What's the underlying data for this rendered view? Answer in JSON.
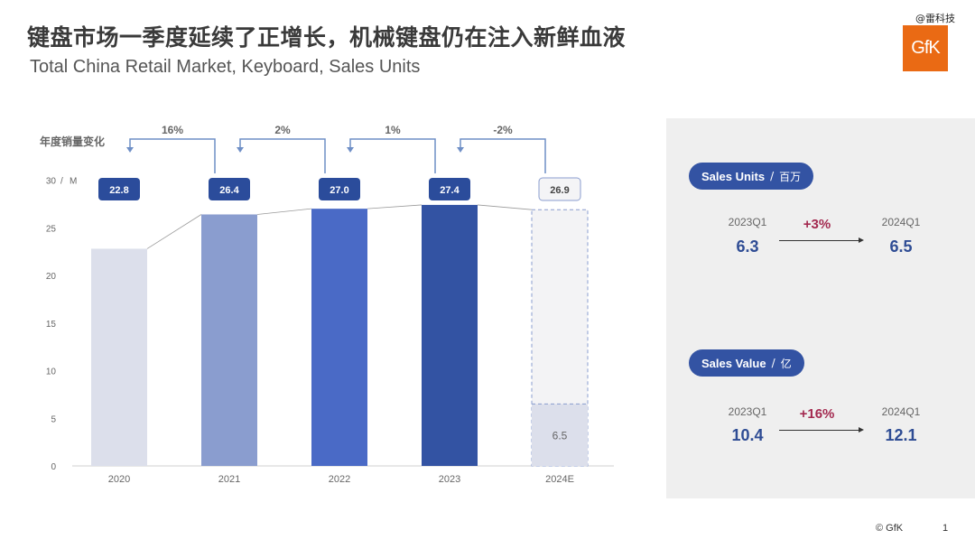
{
  "header": {
    "title": "键盘市场一季度延续了正增长，机械键盘仍在注入新鲜血液",
    "subtitle": "Total China Retail Market, Keyboard, Sales Units",
    "watermark": "@雷科技",
    "logo_text": "GfK"
  },
  "chart_data": {
    "type": "bar",
    "title": "年度销量变化",
    "y_unit": "M",
    "ylim": [
      0,
      30
    ],
    "y_ticks": [
      0,
      5,
      10,
      15,
      20,
      25,
      30
    ],
    "categories": [
      "2020",
      "2021",
      "2022",
      "2023",
      "2024E"
    ],
    "values": [
      22.8,
      26.4,
      27.0,
      27.4,
      26.9
    ],
    "value_labels": [
      "22.8",
      "26.4",
      "27.0",
      "27.4",
      "26.9"
    ],
    "growth_labels": [
      "16%",
      "2%",
      "1%",
      "-2%"
    ],
    "partial_values": [
      null,
      null,
      null,
      null,
      6.5
    ],
    "partial_labels": [
      "",
      "",
      "",
      "",
      "6.5"
    ],
    "bar_colors": [
      "#dcdfeb",
      "#8a9dcf",
      "#4a6ac6",
      "#3353a3",
      "#f3f3f5"
    ],
    "partial_color": "#dcdfeb",
    "accent_color": "#2b4c9b",
    "connector_color": "#6f8fc6",
    "grid": false
  },
  "kpis": [
    {
      "label": "Sales Units",
      "unit": "百万",
      "prev_label": "2023Q1",
      "prev_value": "6.3",
      "change": "+3%",
      "curr_label": "2024Q1",
      "curr_value": "6.5"
    },
    {
      "label": "Sales Value",
      "unit": "亿",
      "prev_label": "2023Q1",
      "prev_value": "10.4",
      "change": "+16%",
      "curr_label": "2024Q1",
      "curr_value": "12.1"
    }
  ],
  "footer": {
    "copyright": "© GfK",
    "page_number": "1"
  }
}
